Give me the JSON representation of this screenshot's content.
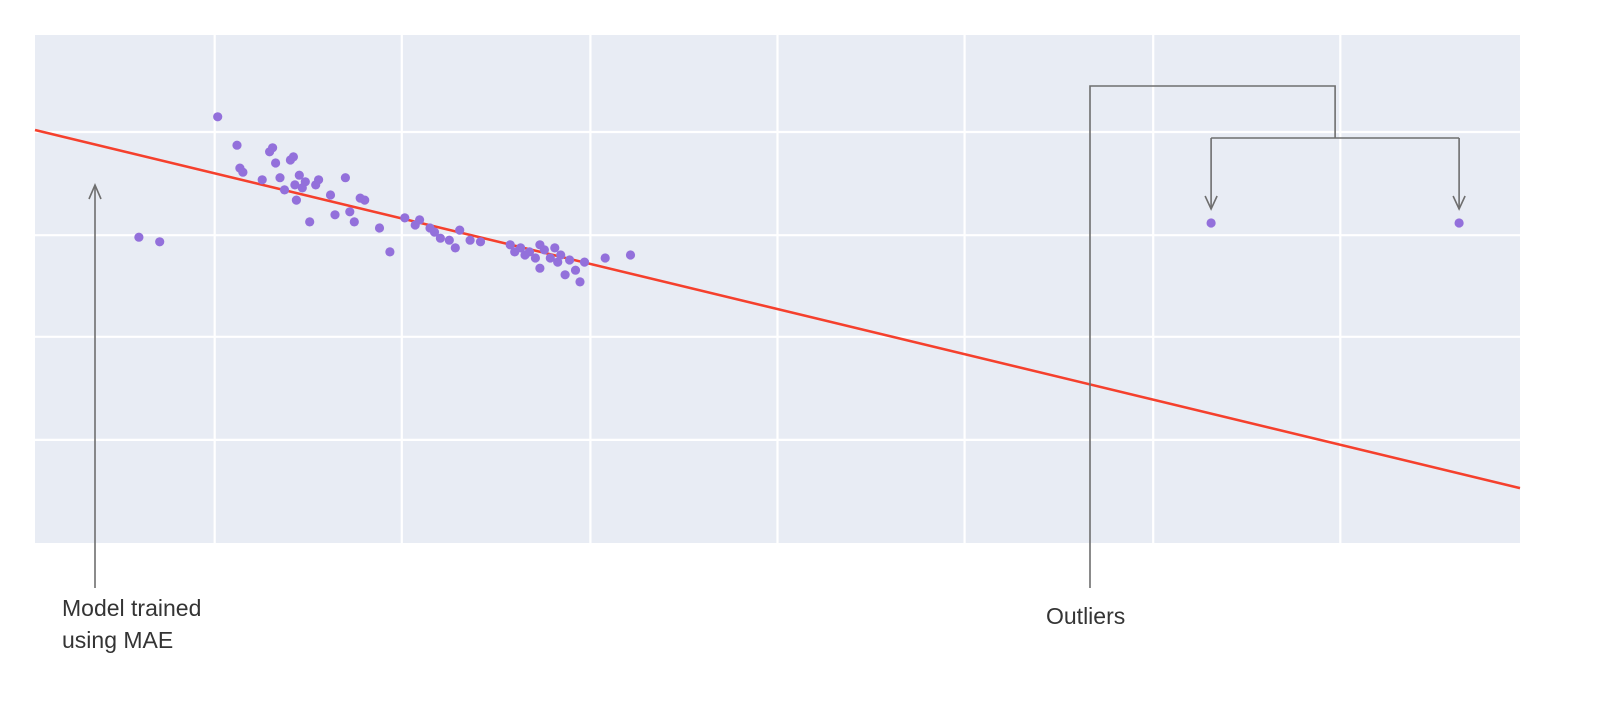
{
  "page": {
    "background": "#ffffff"
  },
  "annotations": {
    "mae_label": "Model trained\nusing MAE",
    "outliers_label": "Outliers"
  },
  "chart_data": {
    "type": "scatter",
    "title": "",
    "xlabel": "",
    "ylabel": "",
    "xlim": [
      0,
      100
    ],
    "ylim": [
      0,
      100
    ],
    "axes_visible": false,
    "tick_labels_visible": false,
    "legend": "none",
    "plot_background": "#e8ecf4",
    "gridline_color": "#ffffff",
    "annotation_color": "#6e6e6e",
    "grid": {
      "x": [
        12.1,
        24.7,
        37.4,
        50.0,
        62.6,
        75.3,
        87.9
      ],
      "y": [
        20.3,
        40.6,
        60.6,
        80.9
      ]
    },
    "series": [
      {
        "name": "inliers",
        "color": "#9370db",
        "points": [
          [
            7.0,
            60.2
          ],
          [
            8.4,
            59.3
          ],
          [
            12.3,
            83.9
          ],
          [
            13.6,
            78.3
          ],
          [
            13.8,
            73.8
          ],
          [
            14.0,
            73.0
          ],
          [
            15.3,
            71.5
          ],
          [
            15.8,
            77.0
          ],
          [
            16.0,
            77.8
          ],
          [
            16.2,
            74.8
          ],
          [
            16.5,
            71.9
          ],
          [
            16.8,
            69.5
          ],
          [
            17.2,
            75.4
          ],
          [
            17.4,
            76.0
          ],
          [
            17.5,
            70.5
          ],
          [
            17.6,
            67.5
          ],
          [
            17.8,
            72.4
          ],
          [
            18.0,
            69.9
          ],
          [
            18.2,
            71.1
          ],
          [
            18.5,
            63.2
          ],
          [
            18.9,
            70.5
          ],
          [
            19.1,
            71.5
          ],
          [
            19.9,
            68.5
          ],
          [
            20.2,
            64.6
          ],
          [
            20.9,
            71.9
          ],
          [
            21.2,
            65.2
          ],
          [
            21.5,
            63.2
          ],
          [
            21.9,
            67.9
          ],
          [
            22.2,
            67.5
          ],
          [
            23.2,
            62.0
          ],
          [
            23.9,
            57.3
          ],
          [
            24.9,
            64.0
          ],
          [
            25.6,
            62.6
          ],
          [
            25.9,
            63.6
          ],
          [
            26.6,
            62.0
          ],
          [
            26.9,
            61.2
          ],
          [
            27.3,
            60.0
          ],
          [
            27.9,
            59.6
          ],
          [
            28.3,
            58.1
          ],
          [
            28.6,
            61.6
          ],
          [
            29.3,
            59.6
          ],
          [
            30.0,
            59.3
          ],
          [
            32.0,
            58.7
          ],
          [
            32.3,
            57.3
          ],
          [
            32.7,
            58.1
          ],
          [
            33.0,
            56.7
          ],
          [
            33.3,
            57.3
          ],
          [
            33.7,
            56.1
          ],
          [
            34.0,
            58.7
          ],
          [
            34.0,
            54.1
          ],
          [
            34.3,
            57.7
          ],
          [
            34.7,
            56.1
          ],
          [
            35.0,
            58.1
          ],
          [
            35.2,
            55.3
          ],
          [
            35.4,
            56.7
          ],
          [
            35.7,
            52.8
          ],
          [
            36.0,
            55.7
          ],
          [
            36.4,
            53.7
          ],
          [
            36.7,
            51.4
          ],
          [
            37.0,
            55.3
          ],
          [
            38.4,
            56.1
          ],
          [
            40.1,
            56.7
          ]
        ]
      },
      {
        "name": "outliers",
        "color": "#9370db",
        "points": [
          [
            79.2,
            63.0
          ],
          [
            95.9,
            63.0
          ]
        ]
      }
    ],
    "regression_line": {
      "name": "Model trained using MAE",
      "color": "#f5402d",
      "x": [
        0,
        100
      ],
      "y": [
        81.3,
        10.8
      ]
    }
  }
}
